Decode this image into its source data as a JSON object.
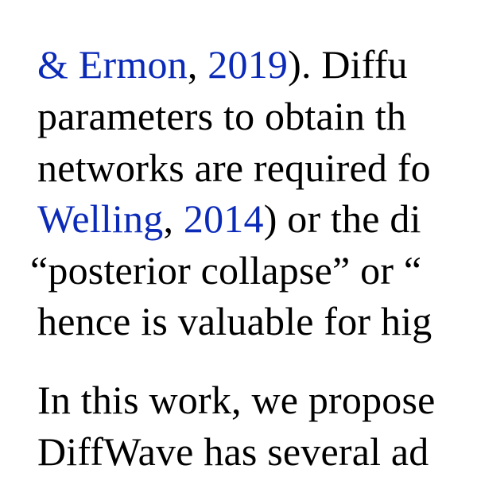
{
  "document": {
    "paragraph_1": {
      "line_1": {
        "cite_author": "& Ermon",
        "sep": ", ",
        "cite_year": "2019",
        "rest": ").  Diffu"
      },
      "line_2": "parameters to obtain th",
      "line_3": "networks are required fo",
      "line_4": {
        "cite_author": "Welling",
        "sep": ", ",
        "cite_year": "2014",
        "rest": ") or the di"
      },
      "line_5": "“posterior collapse” or “",
      "line_6": "hence is valuable for hig"
    },
    "paragraph_2": {
      "line_1": "In this work, we propose",
      "line_2": "DiffWave has several ad"
    }
  },
  "colors": {
    "text": "#000000",
    "citation_link": "#0b2ab8",
    "background": "#ffffff"
  }
}
